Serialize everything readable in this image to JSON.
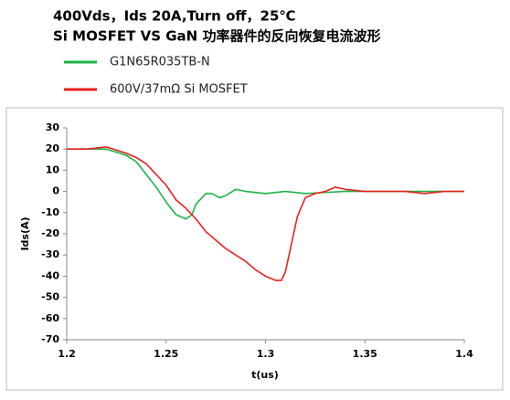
{
  "chart_data": {
    "type": "line",
    "title": "400Vds，Ids 20A,Turn off，25℃",
    "subtitle": "Si MOSFET VS GaN 功率器件的反向恢复电流波形",
    "x_label": "t(us)",
    "y_label": "Ids(A)",
    "xlim": [
      1.2,
      1.4
    ],
    "xticks": [
      1.2,
      1.25,
      1.3,
      1.35,
      1.4
    ],
    "ylim": [
      -70,
      30
    ],
    "yticks": [
      -70,
      -60,
      -50,
      -40,
      -30,
      -20,
      -10,
      0,
      10,
      20,
      30
    ],
    "grid": false,
    "series": [
      {
        "name": "G1N65R035TB-N",
        "color": "#1db344",
        "x": [
          1.2,
          1.21,
          1.22,
          1.23,
          1.235,
          1.24,
          1.245,
          1.25,
          1.255,
          1.26,
          1.263,
          1.265,
          1.27,
          1.273,
          1.277,
          1.28,
          1.285,
          1.29,
          1.3,
          1.31,
          1.32,
          1.33,
          1.34,
          1.35,
          1.37,
          1.4
        ],
        "values": [
          20,
          20,
          20,
          17,
          14,
          8,
          2,
          -5,
          -11,
          -13,
          -11,
          -6,
          -1,
          -1,
          -3,
          -2,
          1,
          0,
          -1,
          0,
          -1,
          -0.5,
          0,
          0,
          0,
          0
        ]
      },
      {
        "name": "600V/37mΩ Si MOSFET",
        "color": "#e8211c",
        "x": [
          1.2,
          1.21,
          1.22,
          1.23,
          1.235,
          1.24,
          1.25,
          1.255,
          1.26,
          1.265,
          1.27,
          1.275,
          1.28,
          1.29,
          1.295,
          1.3,
          1.305,
          1.308,
          1.31,
          1.313,
          1.316,
          1.32,
          1.325,
          1.33,
          1.335,
          1.34,
          1.35,
          1.36,
          1.37,
          1.38,
          1.39,
          1.4
        ],
        "values": [
          20,
          20,
          21,
          18,
          16,
          13,
          3,
          -4,
          -8,
          -13,
          -19,
          -23,
          -27,
          -33,
          -37,
          -40,
          -42,
          -42,
          -38,
          -25,
          -12,
          -3,
          -1,
          0,
          2,
          1,
          0,
          0,
          0,
          -1,
          0,
          0
        ]
      }
    ]
  }
}
